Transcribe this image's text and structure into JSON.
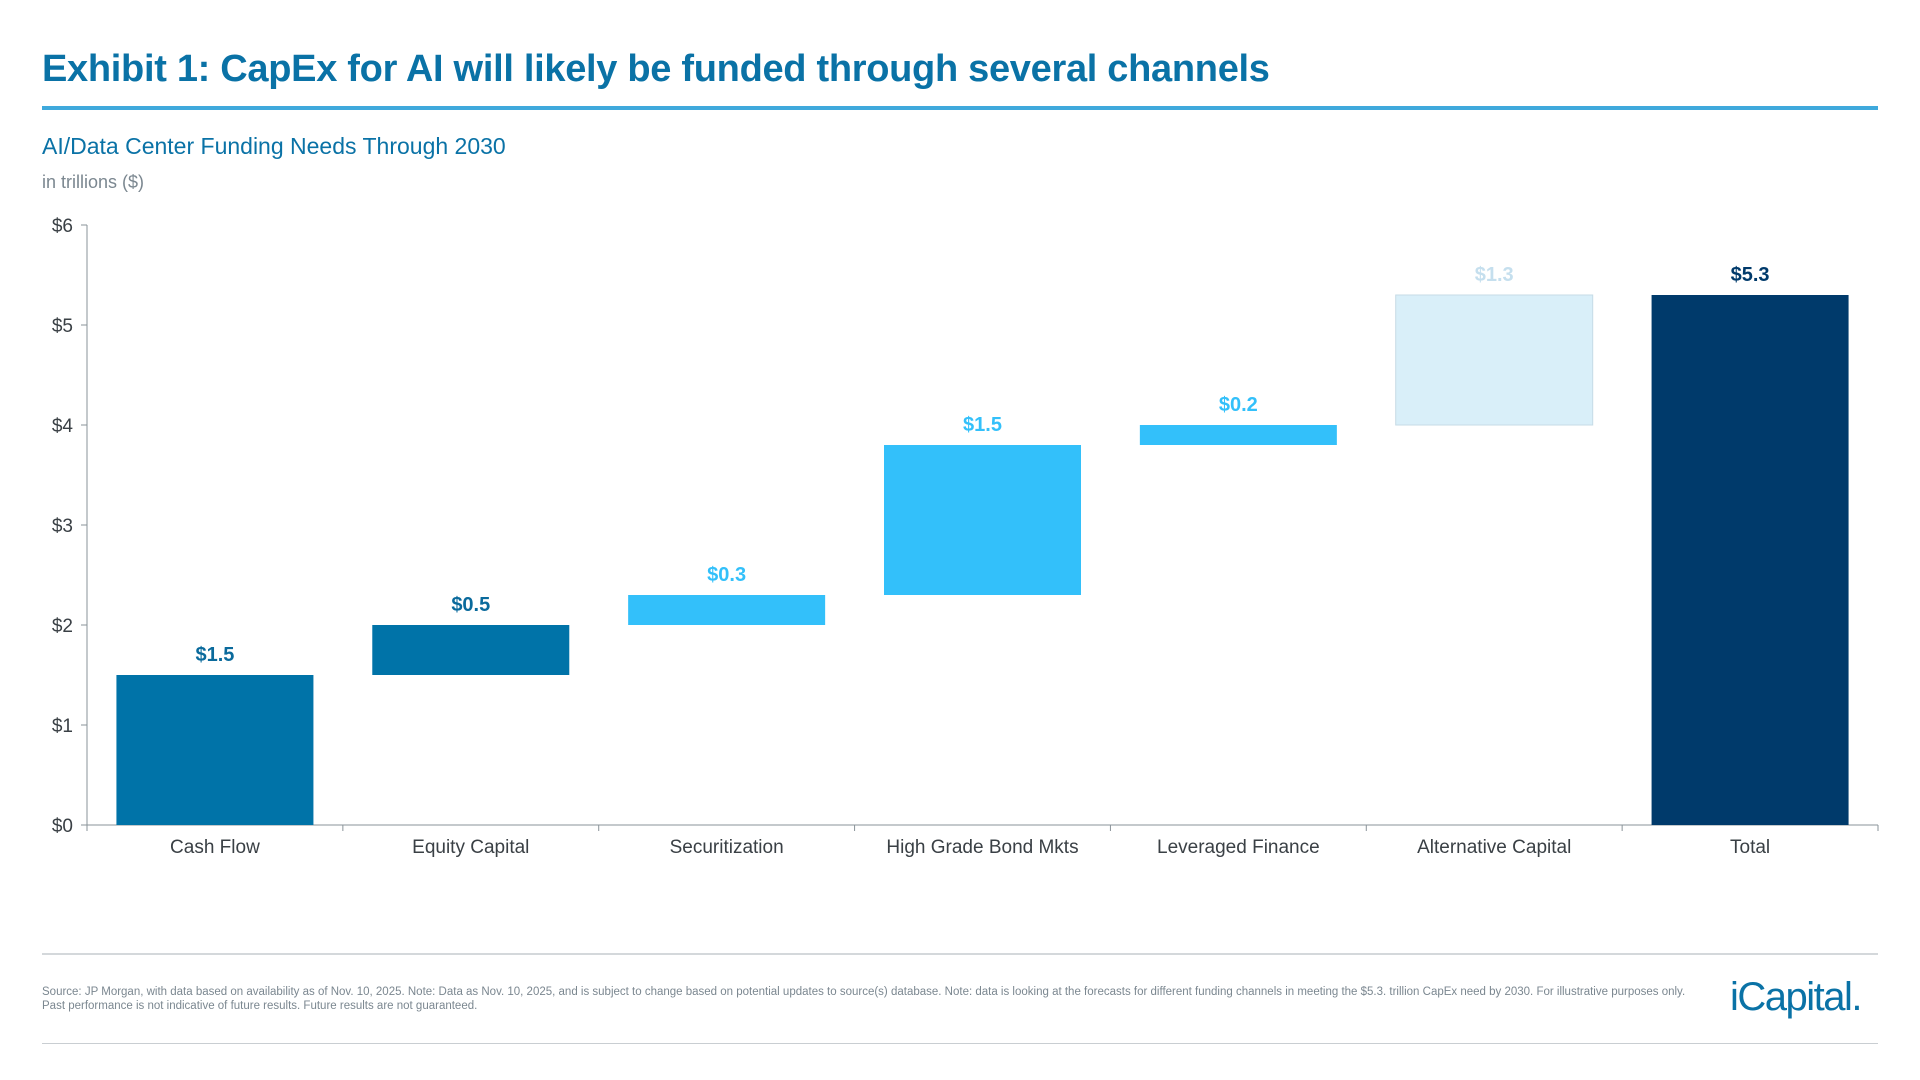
{
  "header": {
    "title": "Exhibit 1: CapEx for AI will likely be funded through several channels",
    "subtitle": "AI/Data Center Funding Needs Through 2030",
    "unit": "in trillions ($)"
  },
  "chart_data": {
    "type": "bar",
    "subtype": "waterfall",
    "title": "AI/Data Center Funding Needs Through 2030",
    "ylabel": "in trillions ($)",
    "xlabel": "",
    "ylim": [
      0,
      6
    ],
    "yticks": [
      0,
      1,
      2,
      3,
      4,
      5,
      6
    ],
    "ytick_labels": [
      "$0",
      "$1",
      "$2",
      "$3",
      "$4",
      "$5",
      "$6"
    ],
    "grid": false,
    "categories": [
      "Cash Flow",
      "Equity Capital",
      "Securitization",
      "High Grade Bond Mkts",
      "Leveraged Finance",
      "Alternative Capital",
      "Total"
    ],
    "values": [
      1.5,
      0.5,
      0.3,
      1.5,
      0.2,
      1.3,
      5.3
    ],
    "bases": [
      0,
      1.5,
      2.0,
      2.3,
      3.8,
      4.0,
      0
    ],
    "data_labels": [
      "$1.5",
      "$0.5",
      "$0.3",
      "$1.5",
      "$0.2",
      "$1.3",
      "$5.3"
    ],
    "colors": [
      "#0073a8",
      "#0073a8",
      "#33c0fa",
      "#33c0fa",
      "#33c0fa",
      "#d9eff9",
      "#003a6b"
    ],
    "label_colors": [
      "#0a6a9c",
      "#0a6a9c",
      "#33c0fa",
      "#33c0fa",
      "#33c0fa",
      "#c5dfee",
      "#003a6b"
    ]
  },
  "footer": {
    "note": "Source: JP Morgan, with data based on availability as of Nov. 10, 2025. Note: Data as Nov. 10, 2025, and is subject to change based on potential updates to source(s) database. Note: data is looking at the forecasts for different funding channels in meeting the $5.3. trillion CapEx need by 2030. For illustrative purposes only. Past performance is not indicative of future results. Future results are not guaranteed.",
    "logo": "iCapital."
  }
}
